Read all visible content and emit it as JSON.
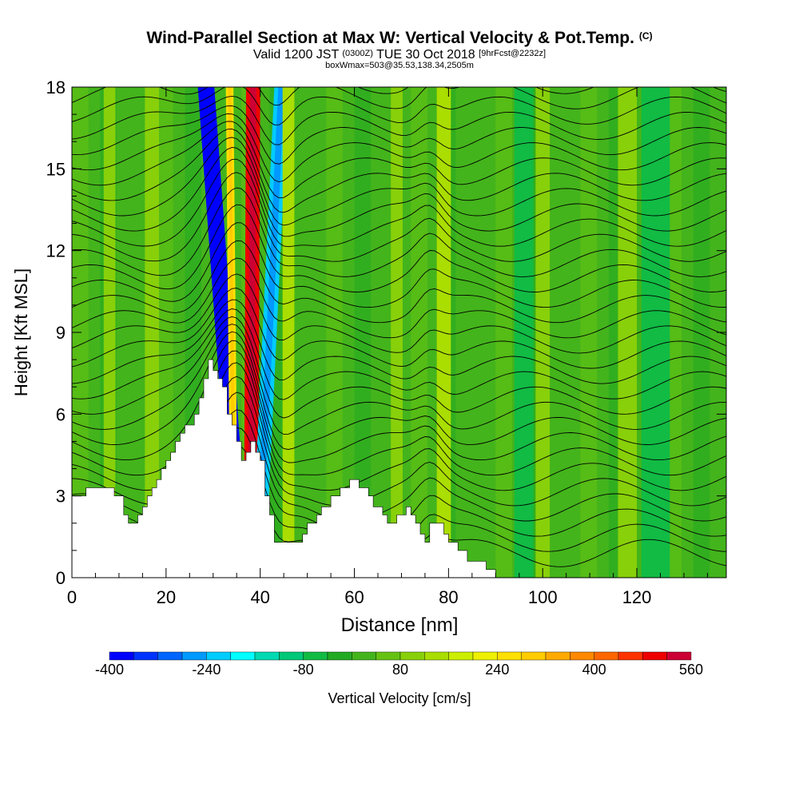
{
  "title": {
    "main": "Wind-Parallel Section at Max W: Vertical Velocity & Pot.Temp.",
    "main_tag": "(C)",
    "valid_prefix": "Valid 1200 JST",
    "valid_utc": "(0300Z)",
    "valid_date": "TUE 30 Oct 2018",
    "forecast": "[9hrFcst@2232z]",
    "box_info": "boxWmax=503@35.53,138.34,2505m"
  },
  "chart_data": {
    "type": "heatmap",
    "xlabel": "Distance [nm]",
    "ylabel": "Height [Kft MSL]",
    "xlim": [
      0,
      139
    ],
    "ylim": [
      0,
      18
    ],
    "x_ticks": [
      0,
      20,
      40,
      60,
      80,
      100,
      120
    ],
    "y_ticks": [
      0,
      3,
      6,
      9,
      12,
      15,
      18
    ],
    "grid": false,
    "colorbar": {
      "label": "Vertical Velocity [cm/s]",
      "tick_labels": [
        "-400",
        "-240",
        "-80",
        "80",
        "240",
        "400",
        "560"
      ],
      "min": -400,
      "max": 560,
      "step": 40,
      "colors": [
        "#0000ff",
        "#0033ff",
        "#0066ff",
        "#0099ff",
        "#00ccff",
        "#00ffff",
        "#00d9b2",
        "#00c878",
        "#11bb44",
        "#22aa22",
        "#44b41c",
        "#66c212",
        "#88d00a",
        "#aadd00",
        "#ccee00",
        "#eef000",
        "#ffe000",
        "#ffcc00",
        "#ffaa00",
        "#ff8800",
        "#ff6600",
        "#ff3300",
        "#ee0000",
        "#cc0033",
        "#aa0055",
        "#880077"
      ]
    },
    "terrain_height_kft": [
      {
        "x": 0,
        "h": 3.0
      },
      {
        "x": 3,
        "h": 3.3
      },
      {
        "x": 7,
        "h": 3.3
      },
      {
        "x": 9,
        "h": 3.0
      },
      {
        "x": 11,
        "h": 2.3
      },
      {
        "x": 12,
        "h": 2.0
      },
      {
        "x": 14,
        "h": 2.3
      },
      {
        "x": 15,
        "h": 2.6
      },
      {
        "x": 16,
        "h": 3.0
      },
      {
        "x": 17,
        "h": 3.3
      },
      {
        "x": 18,
        "h": 3.6
      },
      {
        "x": 19,
        "h": 4.0
      },
      {
        "x": 20,
        "h": 4.3
      },
      {
        "x": 21,
        "h": 4.6
      },
      {
        "x": 22,
        "h": 5.0
      },
      {
        "x": 23,
        "h": 5.3
      },
      {
        "x": 24,
        "h": 5.6
      },
      {
        "x": 26,
        "h": 6.0
      },
      {
        "x": 27,
        "h": 6.6
      },
      {
        "x": 28,
        "h": 7.3
      },
      {
        "x": 29,
        "h": 8.0
      },
      {
        "x": 30,
        "h": 7.6
      },
      {
        "x": 31,
        "h": 7.3
      },
      {
        "x": 32,
        "h": 7.0
      },
      {
        "x": 33,
        "h": 6.0
      },
      {
        "x": 34,
        "h": 5.6
      },
      {
        "x": 35,
        "h": 5.0
      },
      {
        "x": 36,
        "h": 4.3
      },
      {
        "x": 37,
        "h": 4.6
      },
      {
        "x": 38,
        "h": 5.0
      },
      {
        "x": 39,
        "h": 4.6
      },
      {
        "x": 40,
        "h": 4.3
      },
      {
        "x": 41,
        "h": 3.0
      },
      {
        "x": 42,
        "h": 2.3
      },
      {
        "x": 43,
        "h": 1.3
      },
      {
        "x": 48,
        "h": 1.3
      },
      {
        "x": 49,
        "h": 1.6
      },
      {
        "x": 50,
        "h": 2.0
      },
      {
        "x": 52,
        "h": 2.3
      },
      {
        "x": 53,
        "h": 2.6
      },
      {
        "x": 55,
        "h": 3.0
      },
      {
        "x": 57,
        "h": 3.3
      },
      {
        "x": 59,
        "h": 3.6
      },
      {
        "x": 61,
        "h": 3.3
      },
      {
        "x": 63,
        "h": 3.0
      },
      {
        "x": 64,
        "h": 2.6
      },
      {
        "x": 66,
        "h": 2.3
      },
      {
        "x": 67,
        "h": 2.0
      },
      {
        "x": 69,
        "h": 2.3
      },
      {
        "x": 71,
        "h": 2.6
      },
      {
        "x": 72,
        "h": 2.3
      },
      {
        "x": 73,
        "h": 2.0
      },
      {
        "x": 74,
        "h": 1.6
      },
      {
        "x": 75,
        "h": 1.3
      },
      {
        "x": 76,
        "h": 2.0
      },
      {
        "x": 78,
        "h": 2.0
      },
      {
        "x": 79,
        "h": 1.6
      },
      {
        "x": 80,
        "h": 1.3
      },
      {
        "x": 82,
        "h": 1.0
      },
      {
        "x": 84,
        "h": 0.6
      },
      {
        "x": 85,
        "h": 0.6
      },
      {
        "x": 88,
        "h": 0.3
      },
      {
        "x": 90,
        "h": 0.0
      },
      {
        "x": 139,
        "h": 0.0
      }
    ],
    "vertical_velocity_features": [
      {
        "x_center_low": 36,
        "x_center_high": 28.5,
        "width_nm": 3.5,
        "value": -400
      },
      {
        "x_center_low": 38,
        "x_center_high": 38.5,
        "width_nm": 3.0,
        "value": 500
      },
      {
        "x_center_low": 39.5,
        "x_center_high": 44.5,
        "width_nm": 3.0,
        "value": -240
      },
      {
        "x_center_low": 34.5,
        "x_center_high": 33.5,
        "width_nm": 1.6,
        "value": 240
      },
      {
        "x_center_low": 46,
        "x_center_high": 46,
        "width_nm": 2.5,
        "value": 120
      },
      {
        "x_center_low": 79,
        "x_center_high": 79,
        "width_nm": 3.0,
        "value": 120
      },
      {
        "x_center_low": 69,
        "x_center_high": 69,
        "width_nm": 2.5,
        "value": 80
      },
      {
        "x_center_low": 17,
        "x_center_high": 17,
        "width_nm": 3.0,
        "value": 80
      },
      {
        "x_center_low": 8,
        "x_center_high": 8,
        "width_nm": 2.5,
        "value": 80
      },
      {
        "x_center_low": 100,
        "x_center_high": 100,
        "width_nm": 3.0,
        "value": 80
      },
      {
        "x_center_low": 118,
        "x_center_high": 118,
        "width_nm": 4.0,
        "value": 80
      },
      {
        "x_center_low": 96,
        "x_center_high": 96,
        "width_nm": 4.0,
        "value": -80
      },
      {
        "x_center_low": 124,
        "x_center_high": 124,
        "width_nm": 6.0,
        "value": -80
      }
    ]
  }
}
